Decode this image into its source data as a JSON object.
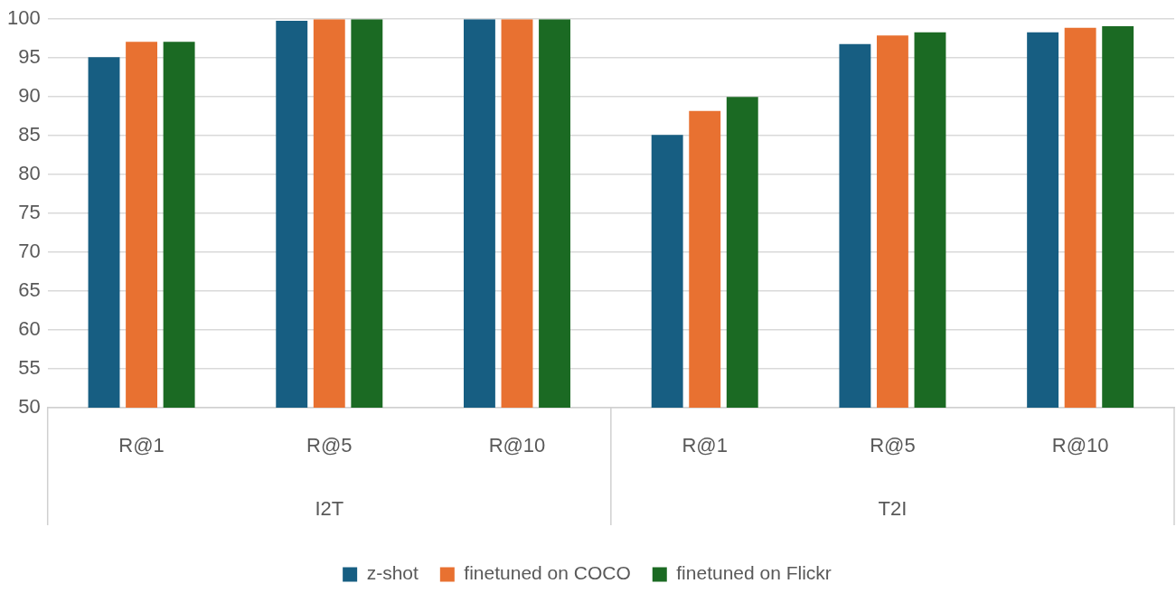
{
  "chart_data": {
    "type": "bar",
    "categories": [
      "R@1",
      "R@5",
      "R@10",
      "R@1",
      "R@5",
      "R@10"
    ],
    "annotations": [
      "I2T",
      "T2I"
    ],
    "series": [
      {
        "name": "z-shot",
        "color": "#175e82",
        "values": [
          95.1,
          99.8,
          100,
          85.1,
          96.8,
          98.3
        ]
      },
      {
        "name": "finetuned on COCO",
        "color": "#e87131",
        "values": [
          97.1,
          100,
          100,
          88.2,
          97.9,
          98.9
        ]
      },
      {
        "name": "finetuned on Flickr",
        "color": "#1b6a23",
        "values": [
          97.1,
          100,
          100,
          90.0,
          98.3,
          99.1
        ]
      }
    ],
    "ylim": [
      50,
      100
    ],
    "yticks": [
      50,
      55,
      60,
      65,
      70,
      75,
      80,
      85,
      90,
      95,
      100
    ],
    "grid": "y",
    "legend": "bottom"
  }
}
